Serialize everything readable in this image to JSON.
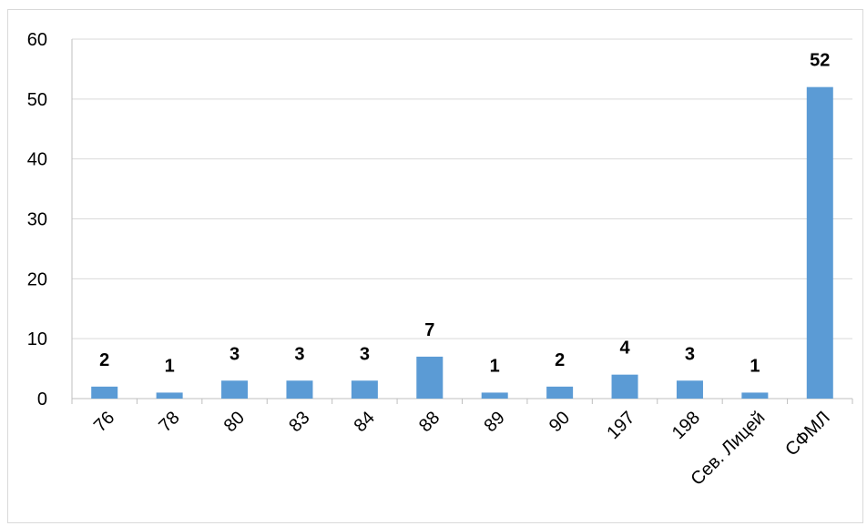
{
  "chart_data": {
    "type": "bar",
    "title": "",
    "xlabel": "",
    "ylabel": "",
    "categories": [
      "76",
      "78",
      "80",
      "83",
      "84",
      "88",
      "89",
      "90",
      "197",
      "198",
      "Сев. Лицей",
      "СФМЛ"
    ],
    "values": [
      2,
      1,
      3,
      3,
      3,
      7,
      1,
      2,
      4,
      3,
      1,
      52
    ],
    "ylim": [
      0,
      60
    ],
    "yticks": [
      0,
      10,
      20,
      30,
      40,
      50,
      60
    ],
    "grid": true,
    "legend": "none",
    "data_labels": true,
    "bar_color": "#5b9bd5",
    "grid_color": "#d9d9d9",
    "axis_color": "#bfbfbf"
  }
}
